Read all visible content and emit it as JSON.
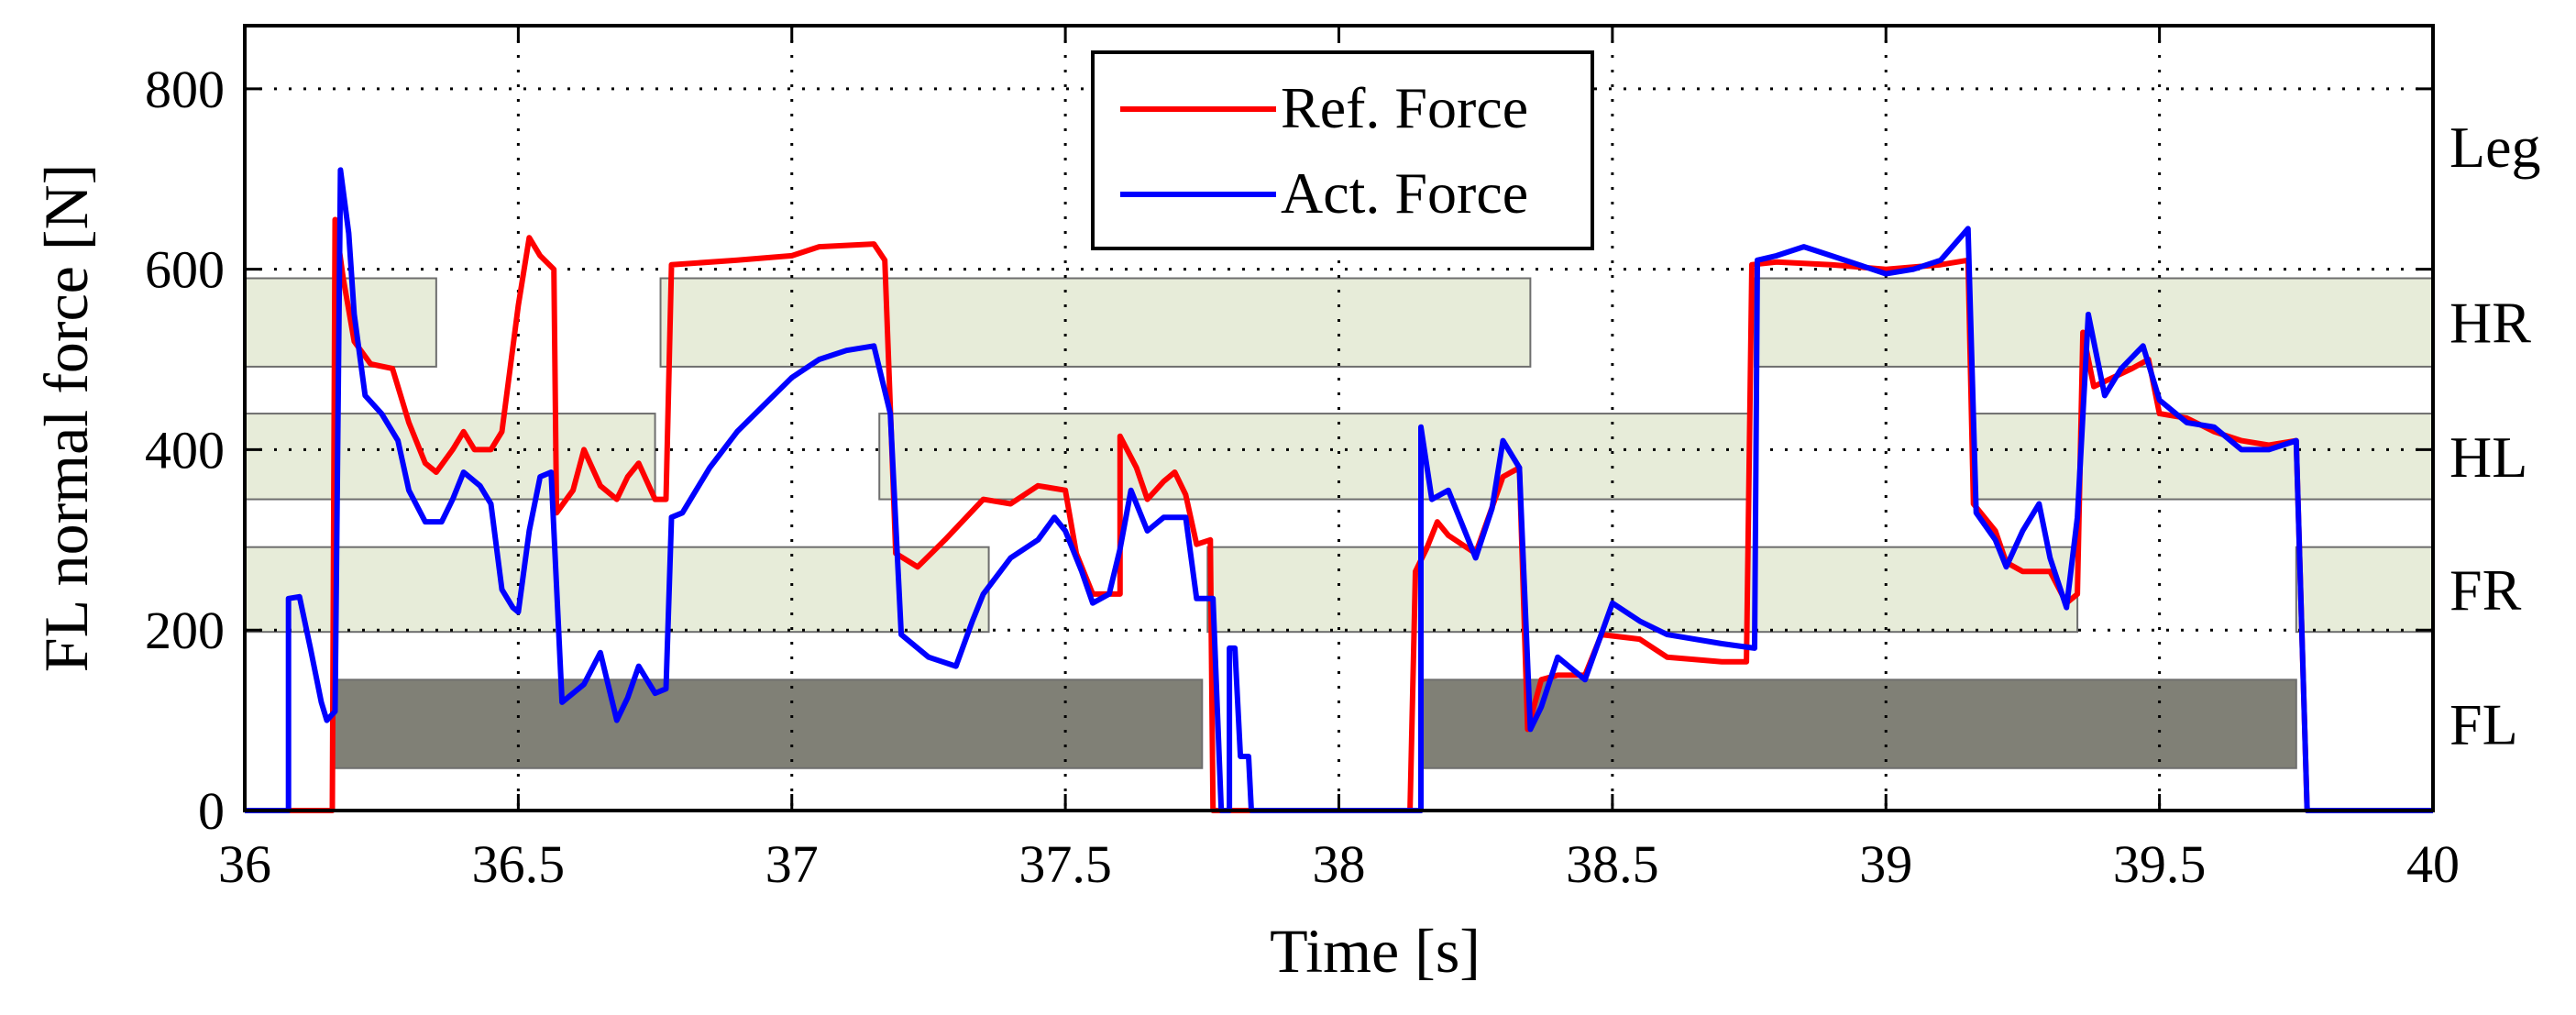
{
  "chart_data": {
    "type": "line",
    "title": "",
    "xlabel": "Time [s]",
    "ylabel": "FL normal force [N]",
    "xlim": [
      36,
      40
    ],
    "ylim": [
      0,
      870
    ],
    "xticks": [
      "36",
      "36.5",
      "37",
      "37.5",
      "38",
      "38.5",
      "39",
      "39.5",
      "40"
    ],
    "yticks": [
      "0",
      "200",
      "400",
      "600",
      "800"
    ],
    "grid": true,
    "legend_position": "top-center",
    "legend": [
      "Ref. Force",
      "Act. Force"
    ],
    "series": [
      {
        "name": "Ref. Force",
        "color": "#ff0000",
        "points": [
          [
            36.0,
            0
          ],
          [
            36.16,
            0
          ],
          [
            36.165,
            655
          ],
          [
            36.18,
            590
          ],
          [
            36.2,
            520
          ],
          [
            36.23,
            495
          ],
          [
            36.27,
            490
          ],
          [
            36.3,
            430
          ],
          [
            36.33,
            385
          ],
          [
            36.35,
            375
          ],
          [
            36.38,
            400
          ],
          [
            36.4,
            420
          ],
          [
            36.42,
            400
          ],
          [
            36.45,
            400
          ],
          [
            36.47,
            420
          ],
          [
            36.5,
            560
          ],
          [
            36.52,
            635
          ],
          [
            36.54,
            615
          ],
          [
            36.565,
            600
          ],
          [
            36.57,
            330
          ],
          [
            36.6,
            355
          ],
          [
            36.62,
            400
          ],
          [
            36.65,
            360
          ],
          [
            36.68,
            345
          ],
          [
            36.7,
            370
          ],
          [
            36.72,
            385
          ],
          [
            36.75,
            345
          ],
          [
            36.77,
            345
          ],
          [
            36.78,
            605
          ],
          [
            36.9,
            610
          ],
          [
            37.0,
            615
          ],
          [
            37.05,
            625
          ],
          [
            37.15,
            628
          ],
          [
            37.17,
            610
          ],
          [
            37.19,
            285
          ],
          [
            37.23,
            270
          ],
          [
            37.28,
            300
          ],
          [
            37.35,
            345
          ],
          [
            37.4,
            340
          ],
          [
            37.45,
            360
          ],
          [
            37.5,
            355
          ],
          [
            37.52,
            285
          ],
          [
            37.55,
            240
          ],
          [
            37.6,
            240
          ],
          [
            37.6,
            415
          ],
          [
            37.63,
            380
          ],
          [
            37.65,
            345
          ],
          [
            37.68,
            365
          ],
          [
            37.7,
            375
          ],
          [
            37.72,
            350
          ],
          [
            37.74,
            295
          ],
          [
            37.765,
            300
          ],
          [
            37.77,
            0
          ],
          [
            38.13,
            0
          ],
          [
            38.14,
            265
          ],
          [
            38.16,
            290
          ],
          [
            38.18,
            320
          ],
          [
            38.2,
            305
          ],
          [
            38.25,
            285
          ],
          [
            38.3,
            370
          ],
          [
            38.33,
            380
          ],
          [
            38.345,
            90
          ],
          [
            38.37,
            145
          ],
          [
            38.4,
            150
          ],
          [
            38.45,
            150
          ],
          [
            38.48,
            195
          ],
          [
            38.55,
            190
          ],
          [
            38.6,
            170
          ],
          [
            38.7,
            165
          ],
          [
            38.745,
            165
          ],
          [
            38.755,
            605
          ],
          [
            38.8,
            608
          ],
          [
            38.9,
            605
          ],
          [
            39.0,
            600
          ],
          [
            39.1,
            605
          ],
          [
            39.15,
            610
          ],
          [
            39.16,
            340
          ],
          [
            39.2,
            310
          ],
          [
            39.22,
            275
          ],
          [
            39.25,
            265
          ],
          [
            39.3,
            265
          ],
          [
            39.33,
            230
          ],
          [
            39.35,
            240
          ],
          [
            39.36,
            530
          ],
          [
            39.38,
            470
          ],
          [
            39.45,
            490
          ],
          [
            39.48,
            500
          ],
          [
            39.5,
            440
          ],
          [
            39.55,
            435
          ],
          [
            39.6,
            420
          ],
          [
            39.65,
            410
          ],
          [
            39.7,
            405
          ],
          [
            39.75,
            410
          ],
          [
            39.77,
            0
          ],
          [
            40.0,
            0
          ]
        ]
      },
      {
        "name": "Act. Force",
        "color": "#0000ff",
        "points": [
          [
            36.0,
            0
          ],
          [
            36.08,
            0
          ],
          [
            36.08,
            235
          ],
          [
            36.1,
            237
          ],
          [
            36.12,
            180
          ],
          [
            36.14,
            120
          ],
          [
            36.15,
            100
          ],
          [
            36.165,
            110
          ],
          [
            36.175,
            710
          ],
          [
            36.19,
            640
          ],
          [
            36.2,
            550
          ],
          [
            36.22,
            460
          ],
          [
            36.25,
            440
          ],
          [
            36.28,
            410
          ],
          [
            36.3,
            355
          ],
          [
            36.33,
            320
          ],
          [
            36.36,
            320
          ],
          [
            36.38,
            345
          ],
          [
            36.4,
            375
          ],
          [
            36.43,
            360
          ],
          [
            36.45,
            340
          ],
          [
            36.47,
            245
          ],
          [
            36.49,
            225
          ],
          [
            36.5,
            220
          ],
          [
            36.52,
            310
          ],
          [
            36.54,
            370
          ],
          [
            36.56,
            375
          ],
          [
            36.58,
            120
          ],
          [
            36.62,
            140
          ],
          [
            36.65,
            175
          ],
          [
            36.68,
            100
          ],
          [
            36.7,
            125
          ],
          [
            36.72,
            160
          ],
          [
            36.75,
            130
          ],
          [
            36.77,
            135
          ],
          [
            36.78,
            325
          ],
          [
            36.8,
            330
          ],
          [
            36.85,
            380
          ],
          [
            36.9,
            420
          ],
          [
            36.95,
            450
          ],
          [
            37.0,
            480
          ],
          [
            37.05,
            500
          ],
          [
            37.1,
            510
          ],
          [
            37.15,
            515
          ],
          [
            37.18,
            440
          ],
          [
            37.2,
            195
          ],
          [
            37.25,
            170
          ],
          [
            37.3,
            160
          ],
          [
            37.33,
            210
          ],
          [
            37.35,
            240
          ],
          [
            37.4,
            280
          ],
          [
            37.45,
            300
          ],
          [
            37.48,
            325
          ],
          [
            37.5,
            310
          ],
          [
            37.53,
            265
          ],
          [
            37.55,
            230
          ],
          [
            37.58,
            240
          ],
          [
            37.6,
            290
          ],
          [
            37.62,
            355
          ],
          [
            37.65,
            310
          ],
          [
            37.68,
            325
          ],
          [
            37.72,
            325
          ],
          [
            37.74,
            235
          ],
          [
            37.77,
            235
          ],
          [
            37.785,
            0
          ],
          [
            37.8,
            0
          ],
          [
            37.8,
            180
          ],
          [
            37.81,
            180
          ],
          [
            37.82,
            60
          ],
          [
            37.835,
            60
          ],
          [
            37.84,
            0
          ],
          [
            38.15,
            0
          ],
          [
            38.15,
            425
          ],
          [
            38.17,
            345
          ],
          [
            38.2,
            355
          ],
          [
            38.23,
            310
          ],
          [
            38.25,
            280
          ],
          [
            38.28,
            335
          ],
          [
            38.3,
            410
          ],
          [
            38.33,
            380
          ],
          [
            38.35,
            90
          ],
          [
            38.37,
            115
          ],
          [
            38.4,
            170
          ],
          [
            38.45,
            145
          ],
          [
            38.5,
            230
          ],
          [
            38.55,
            210
          ],
          [
            38.6,
            195
          ],
          [
            38.7,
            185
          ],
          [
            38.76,
            180
          ],
          [
            38.765,
            610
          ],
          [
            38.8,
            615
          ],
          [
            38.85,
            625
          ],
          [
            38.9,
            615
          ],
          [
            38.95,
            605
          ],
          [
            39.0,
            595
          ],
          [
            39.05,
            600
          ],
          [
            39.1,
            610
          ],
          [
            39.15,
            645
          ],
          [
            39.165,
            330
          ],
          [
            39.2,
            300
          ],
          [
            39.22,
            270
          ],
          [
            39.25,
            310
          ],
          [
            39.28,
            340
          ],
          [
            39.3,
            280
          ],
          [
            39.33,
            225
          ],
          [
            39.35,
            325
          ],
          [
            39.37,
            550
          ],
          [
            39.4,
            460
          ],
          [
            39.43,
            490
          ],
          [
            39.47,
            515
          ],
          [
            39.5,
            455
          ],
          [
            39.55,
            430
          ],
          [
            39.6,
            425
          ],
          [
            39.65,
            400
          ],
          [
            39.7,
            400
          ],
          [
            39.75,
            410
          ],
          [
            39.77,
            0
          ],
          [
            40.0,
            0
          ]
        ]
      }
    ],
    "legs": {
      "axis_title": "Leg",
      "labels": [
        "HR",
        "HL",
        "FR",
        "FL"
      ],
      "HR": [
        [
          36.0,
          36.35
        ],
        [
          36.76,
          38.35
        ],
        [
          38.76,
          40.0
        ]
      ],
      "HL": [
        [
          36.0,
          36.75
        ],
        [
          37.16,
          38.75
        ],
        [
          39.16,
          40.0
        ]
      ],
      "FR": [
        [
          36.0,
          37.36
        ],
        [
          37.76,
          39.35
        ],
        [
          39.75,
          40.0
        ]
      ],
      "FL": [
        [
          36.16,
          37.75
        ],
        [
          38.15,
          39.75
        ]
      ]
    },
    "colors": {
      "stance_light": "#e7ecd9",
      "stance_dark": "#808076",
      "box_stroke": "#6e6e6e"
    }
  }
}
